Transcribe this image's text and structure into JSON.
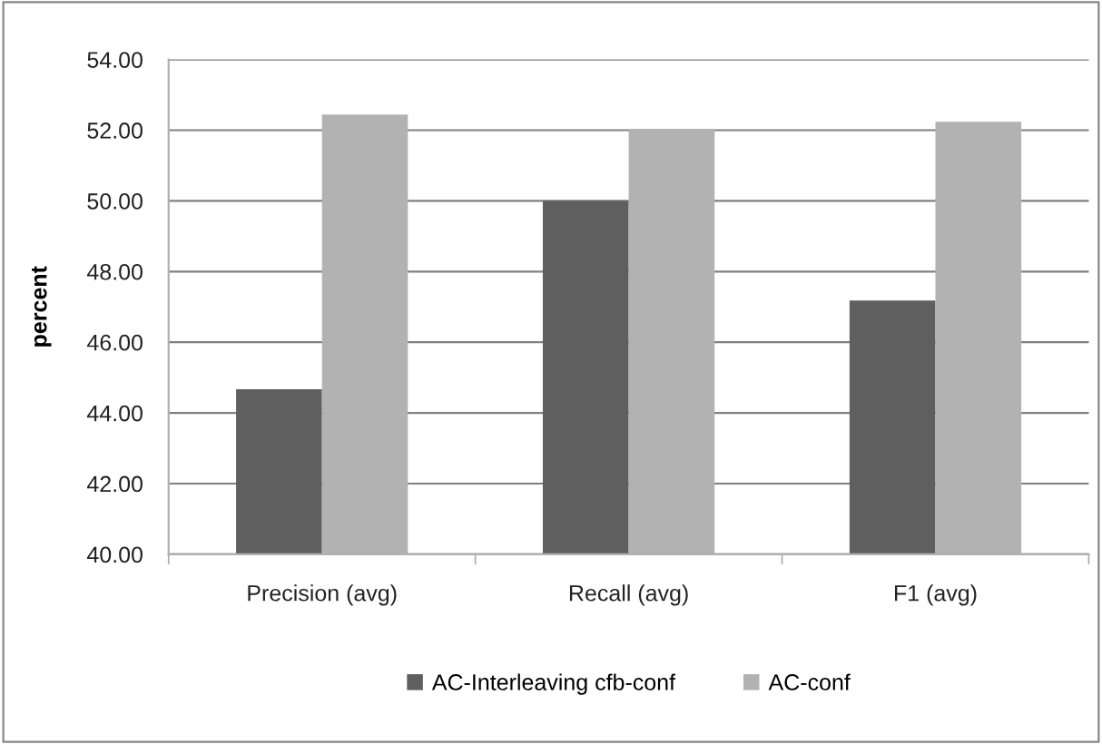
{
  "chart_data": {
    "type": "bar",
    "ylabel": "percent",
    "categories": [
      "Precision (avg)",
      "Recall (avg)",
      "F1 (avg)"
    ],
    "series": [
      {
        "name": "AC-Interleaving cfb-conf",
        "color": "#5f5f5f",
        "values": [
          44.67,
          50.0,
          47.18
        ]
      },
      {
        "name": "AC-conf",
        "color": "#b2b2b2",
        "values": [
          52.44,
          52.04,
          52.24
        ]
      }
    ],
    "ylim": [
      40,
      54
    ],
    "yticks": [
      {
        "value": 40,
        "label": "40.00"
      },
      {
        "value": 42,
        "label": "42.00"
      },
      {
        "value": 44,
        "label": "44.00"
      },
      {
        "value": 46,
        "label": "46.00"
      },
      {
        "value": 48,
        "label": "48.00"
      },
      {
        "value": 50,
        "label": "50.00"
      },
      {
        "value": 52,
        "label": "52.00"
      },
      {
        "value": 54,
        "label": "54.00"
      }
    ],
    "grid": "y",
    "legend": "bottom"
  }
}
